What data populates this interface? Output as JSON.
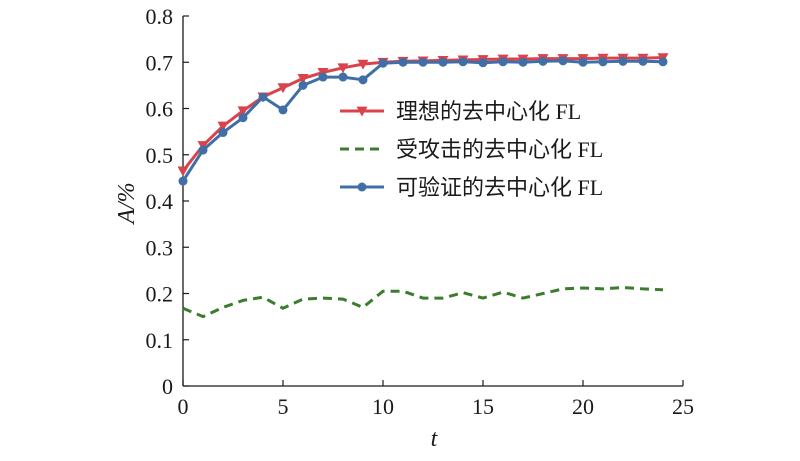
{
  "chart_data": {
    "type": "line",
    "xlabel": "t",
    "ylabel": "A/%",
    "xlim": [
      0,
      25
    ],
    "ylim": [
      0,
      0.8
    ],
    "xticks": [
      "0",
      "5",
      "10",
      "15",
      "20",
      "25"
    ],
    "yticks": [
      "0",
      "0.1",
      "0.2",
      "0.3",
      "0.4",
      "0.5",
      "0.6",
      "0.7",
      "0.8"
    ],
    "grid": false,
    "legend_position": "center-right",
    "series": [
      {
        "name": "理想的去中心化 FL",
        "color": "#d9434b",
        "line_style": "solid",
        "marker": "triangle-down",
        "x": [
          0,
          1,
          2,
          3,
          4,
          5,
          6,
          7,
          8,
          9,
          10,
          11,
          12,
          13,
          14,
          15,
          16,
          17,
          18,
          19,
          20,
          21,
          22,
          23,
          24
        ],
        "values": [
          0.465,
          0.52,
          0.562,
          0.595,
          0.625,
          0.645,
          0.665,
          0.678,
          0.688,
          0.696,
          0.7,
          0.702,
          0.703,
          0.704,
          0.705,
          0.706,
          0.707,
          0.707,
          0.708,
          0.708,
          0.708,
          0.709,
          0.709,
          0.709,
          0.71
        ]
      },
      {
        "name": "受攻击的去中心化 FL",
        "color": "#3a7d2c",
        "line_style": "dashed",
        "marker": "none",
        "x": [
          0,
          1,
          2,
          3,
          4,
          5,
          6,
          7,
          8,
          9,
          10,
          11,
          12,
          13,
          14,
          15,
          16,
          17,
          18,
          19,
          20,
          21,
          22,
          23,
          24
        ],
        "values": [
          0.168,
          0.15,
          0.17,
          0.185,
          0.192,
          0.168,
          0.188,
          0.19,
          0.188,
          0.17,
          0.205,
          0.205,
          0.19,
          0.19,
          0.202,
          0.19,
          0.203,
          0.19,
          0.2,
          0.21,
          0.212,
          0.21,
          0.213,
          0.21,
          0.208
        ]
      },
      {
        "name": "可验证的去中心化 FL",
        "color": "#3f6fa6",
        "line_style": "solid",
        "marker": "circle",
        "x": [
          0,
          1,
          2,
          3,
          4,
          5,
          6,
          7,
          8,
          9,
          10,
          11,
          12,
          13,
          14,
          15,
          16,
          17,
          18,
          19,
          20,
          21,
          22,
          23,
          24
        ],
        "values": [
          0.443,
          0.51,
          0.548,
          0.58,
          0.625,
          0.597,
          0.65,
          0.668,
          0.668,
          0.662,
          0.698,
          0.7,
          0.7,
          0.7,
          0.701,
          0.699,
          0.701,
          0.7,
          0.702,
          0.703,
          0.7,
          0.701,
          0.702,
          0.702,
          0.701
        ]
      }
    ]
  }
}
